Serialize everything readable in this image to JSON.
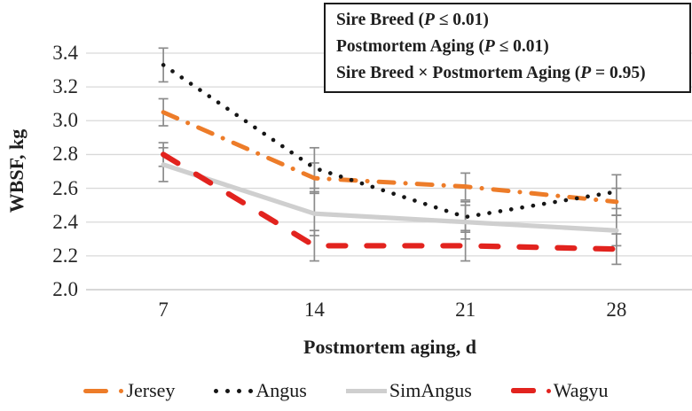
{
  "annotation": {
    "lines": [
      {
        "label": "Sire Breed",
        "p_symbol": "P",
        "p_rest": "≤ 0.01"
      },
      {
        "label": "Postmortem Aging",
        "p_symbol": "P",
        "p_rest": "≤ 0.01"
      },
      {
        "label": "Sire Breed × Postmortem Aging",
        "p_symbol": "P",
        "p_rest": "= 0.95"
      }
    ]
  },
  "chart_data": {
    "type": "line",
    "x": [
      7,
      14,
      21,
      28
    ],
    "xtick_labels": [
      "7",
      "14",
      "21",
      "28"
    ],
    "xlabel": "Postmortem aging, d",
    "ylabel": "WBSF, kg",
    "ylim": [
      2.0,
      3.4
    ],
    "yticks": [
      "2.0",
      "2.2",
      "2.4",
      "2.6",
      "2.8",
      "3.0",
      "3.2",
      "3.4"
    ],
    "grid": "horizontal",
    "legend_position": "bottom",
    "error_bars": true,
    "series": [
      {
        "name": "Jersey",
        "color": "#ED7C29",
        "line_style": "dash-dot",
        "values": [
          3.05,
          2.66,
          2.61,
          2.52
        ],
        "errors": [
          0.08,
          0.09,
          0.08,
          0.08
        ]
      },
      {
        "name": "Angus",
        "color": "#161616",
        "line_style": "dotted",
        "values": [
          3.33,
          2.72,
          2.43,
          2.58
        ],
        "errors": [
          0.1,
          0.12,
          0.09,
          0.1
        ]
      },
      {
        "name": "SimAngus",
        "color": "#CFCFCF",
        "line_style": "solid",
        "values": [
          2.74,
          2.45,
          2.4,
          2.35
        ],
        "errors": [
          0.1,
          0.13,
          0.1,
          0.09
        ]
      },
      {
        "name": "Wagyu",
        "color": "#E2231E",
        "line_style": "long-dash",
        "values": [
          2.8,
          2.26,
          2.26,
          2.24
        ],
        "errors": [
          0.07,
          0.09,
          0.09,
          0.09
        ]
      }
    ],
    "colors": {
      "gridline": "#D9D9D9",
      "axis_line": "#BFBFBF",
      "error_bar": "#8C8C8C",
      "text": "#1f1f1f"
    }
  }
}
